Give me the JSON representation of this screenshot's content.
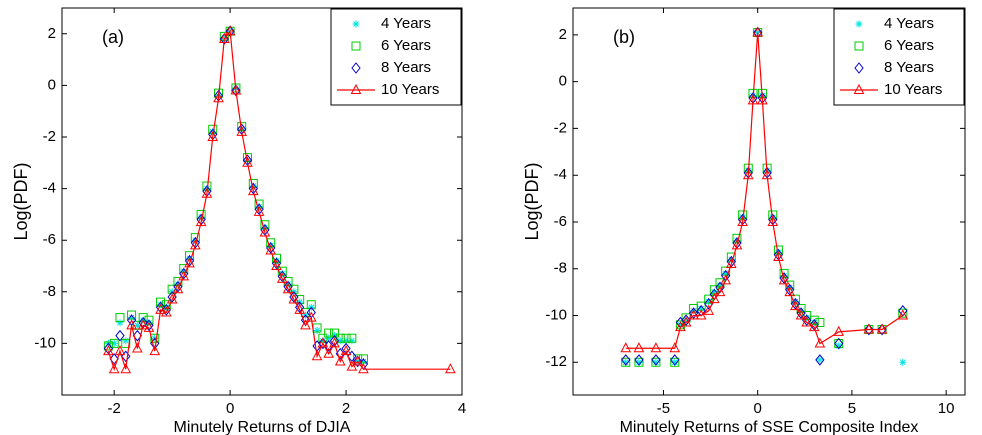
{
  "chart_data": [
    {
      "type": "line",
      "annotation": "(a)",
      "xlabel": "Minutely Returns of DJIA",
      "ylabel": "Log(PDF)",
      "xlim": [
        -2.9,
        4
      ],
      "ylim": [
        -12,
        3
      ],
      "xticks": [
        -2,
        0,
        2,
        4
      ],
      "yticks": [
        -10,
        -8,
        -6,
        -4,
        -2,
        0,
        2
      ],
      "legend": "upper right",
      "x": [
        -2.1,
        -2.0,
        -1.9,
        -1.8,
        -1.7,
        -1.6,
        -1.5,
        -1.4,
        -1.3,
        -1.2,
        -1.1,
        -1.0,
        -0.9,
        -0.8,
        -0.7,
        -0.6,
        -0.5,
        -0.4,
        -0.3,
        -0.2,
        -0.1,
        0,
        0.1,
        0.2,
        0.3,
        0.4,
        0.5,
        0.6,
        0.7,
        0.8,
        0.9,
        1.0,
        1.1,
        1.2,
        1.3,
        1.4,
        1.5,
        1.6,
        1.7,
        1.8,
        1.9,
        2.0,
        2.1,
        2.2,
        2.3,
        3.8
      ],
      "series": [
        {
          "name": "4 Years",
          "color": "#00e5e5",
          "marker": "star",
          "line": false,
          "values": [
            -10.0,
            -10.0,
            -9.2,
            -9.9,
            -9.0,
            -9.3,
            -9.1,
            -9.2,
            -9.8,
            -8.5,
            -8.6,
            -8.0,
            -7.7,
            -7.2,
            -6.7,
            -6.0,
            -5.1,
            -4.0,
            -1.8,
            -0.4,
            1.8,
            2.1,
            -0.1,
            -1.7,
            -2.9,
            -3.9,
            -4.7,
            -5.5,
            -6.2,
            -6.8,
            -7.3,
            -7.7,
            -8.0,
            -8.4,
            -8.9,
            -8.6,
            -9.5,
            -9.9,
            -9.8,
            -9.7,
            -9.9,
            -9.9,
            -9.9,
            -10.7,
            -10.7,
            null
          ]
        },
        {
          "name": "6 Years",
          "color": "#00cc00",
          "marker": "square",
          "line": false,
          "values": [
            -10.1,
            -10.0,
            -9.0,
            -10.0,
            -8.9,
            -9.3,
            -9.0,
            -9.1,
            -9.8,
            -8.4,
            -8.5,
            -7.9,
            -7.6,
            -7.1,
            -6.6,
            -5.9,
            -5.0,
            -3.9,
            -1.7,
            -0.3,
            1.9,
            2.1,
            -0.1,
            -1.6,
            -2.8,
            -3.8,
            -4.6,
            -5.4,
            -6.1,
            -6.7,
            -7.2,
            -7.6,
            -7.9,
            -8.3,
            -8.8,
            -8.5,
            -9.4,
            -9.8,
            -9.6,
            -9.6,
            -9.8,
            -9.8,
            -9.8,
            -10.6,
            -10.6,
            null
          ]
        },
        {
          "name": "8 Years",
          "color": "#0000cc",
          "marker": "diamond",
          "line": false,
          "values": [
            -10.2,
            -10.6,
            -9.7,
            -10.5,
            -9.1,
            -9.7,
            -9.2,
            -9.3,
            -10.0,
            -8.6,
            -8.7,
            -8.2,
            -7.8,
            -7.3,
            -6.8,
            -6.1,
            -5.2,
            -4.1,
            -1.9,
            -0.4,
            1.8,
            2.1,
            -0.2,
            -1.7,
            -2.9,
            -4.0,
            -4.8,
            -5.6,
            -6.3,
            -6.9,
            -7.4,
            -7.8,
            -8.2,
            -8.6,
            -9.1,
            -8.8,
            -10.1,
            -10.0,
            -10.1,
            -9.9,
            -10.4,
            -10.2,
            -10.5,
            -10.7,
            -10.8,
            null
          ]
        },
        {
          "name": "10 Years",
          "color": "#ff0000",
          "marker": "triangle",
          "line": true,
          "values": [
            -10.3,
            -11.0,
            -10.3,
            -11.0,
            -9.3,
            -10.2,
            -9.3,
            -9.4,
            -10.3,
            -8.7,
            -8.8,
            -8.3,
            -7.9,
            -7.4,
            -6.9,
            -6.2,
            -5.3,
            -4.2,
            -2.0,
            -0.5,
            1.8,
            2.1,
            -0.2,
            -1.8,
            -3.0,
            -4.1,
            -4.9,
            -5.7,
            -6.4,
            -7.0,
            -7.5,
            -7.9,
            -8.3,
            -8.7,
            -9.3,
            -9.0,
            -10.5,
            -10.0,
            -10.4,
            -10.0,
            -10.7,
            -10.3,
            -10.9,
            -10.7,
            -11.0,
            -11.0
          ]
        }
      ]
    },
    {
      "type": "line",
      "annotation": "(b)",
      "xlabel": "Minutely Returns of SSE Composite Index",
      "ylabel": "Log(PDF)",
      "xlim": [
        -9.8,
        11
      ],
      "ylim": [
        -13.4,
        3.15
      ],
      "xticks": [
        -5,
        0,
        5,
        10
      ],
      "yticks": [
        -12,
        -10,
        -8,
        -6,
        -4,
        -2,
        0,
        2
      ],
      "legend": "upper right",
      "x": [
        -7,
        -6.3,
        -5.4,
        -4.4,
        -4.1,
        -3.8,
        -3.4,
        -3.0,
        -2.6,
        -2.3,
        -2.0,
        -1.7,
        -1.4,
        -1.1,
        -0.8,
        -0.5,
        -0.25,
        0,
        0.25,
        0.5,
        0.8,
        1.1,
        1.4,
        1.7,
        2.0,
        2.3,
        2.6,
        3.0,
        3.3,
        4.3,
        5.9,
        6.6,
        7.7
      ],
      "series": [
        {
          "name": "4 Years",
          "color": "#00e5e5",
          "marker": "star",
          "line": false,
          "values": [
            -12.0,
            -12.0,
            -12.0,
            -12.0,
            -10.4,
            -10.2,
            -9.8,
            -9.7,
            -9.4,
            -9.0,
            -8.7,
            -8.2,
            -7.6,
            -6.8,
            -5.8,
            -3.8,
            -0.6,
            2.1,
            -0.6,
            -3.8,
            -5.8,
            -7.3,
            -8.3,
            -8.8,
            -9.4,
            -9.8,
            -10.1,
            -10.3,
            -11.9,
            -11.3,
            null,
            null,
            -12.0
          ]
        },
        {
          "name": "6 Years",
          "color": "#00cc00",
          "marker": "square",
          "line": false,
          "values": [
            -12.0,
            -12.0,
            -12.0,
            -12.0,
            -10.4,
            -10.1,
            -9.7,
            -9.6,
            -9.3,
            -8.9,
            -8.6,
            -8.1,
            -7.5,
            -6.7,
            -5.7,
            -3.7,
            -0.5,
            2.1,
            -0.5,
            -3.7,
            -5.7,
            -7.2,
            -8.2,
            -8.7,
            -9.3,
            -9.7,
            -10.0,
            -10.2,
            -10.3,
            -11.2,
            -10.6,
            -10.6,
            -9.9
          ]
        },
        {
          "name": "8 Years",
          "color": "#0000cc",
          "marker": "diamond",
          "line": false,
          "values": [
            -11.9,
            -11.9,
            -11.9,
            -11.9,
            -10.3,
            -10.2,
            -9.9,
            -9.8,
            -9.5,
            -9.1,
            -8.8,
            -8.3,
            -7.7,
            -6.9,
            -5.9,
            -3.9,
            -0.7,
            2.1,
            -0.7,
            -3.9,
            -5.9,
            -7.4,
            -8.4,
            -8.9,
            -9.5,
            -9.9,
            -10.2,
            -10.4,
            -11.9,
            -11.2,
            -10.6,
            -10.6,
            -9.8
          ]
        },
        {
          "name": "10 Years",
          "color": "#ff0000",
          "marker": "triangle",
          "line": true,
          "values": [
            -11.4,
            -11.4,
            -11.4,
            -11.4,
            -10.5,
            -10.3,
            -10.0,
            -10.0,
            -9.8,
            -9.3,
            -9.0,
            -8.5,
            -7.8,
            -7.0,
            -6.0,
            -4.0,
            -0.8,
            2.1,
            -0.8,
            -4.0,
            -6.0,
            -7.5,
            -8.5,
            -9.0,
            -9.6,
            -10.0,
            -10.3,
            -10.5,
            -11.2,
            -10.7,
            -10.6,
            -10.6,
            -10.0
          ]
        }
      ]
    }
  ]
}
